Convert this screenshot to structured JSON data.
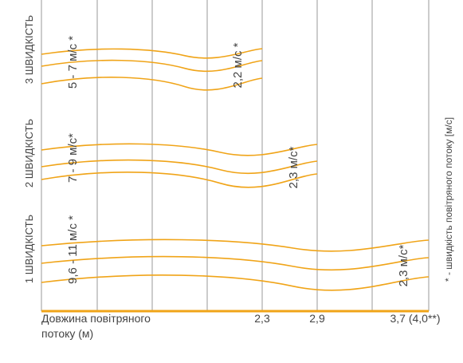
{
  "colors": {
    "airflow_line": "#F0A418",
    "baseline": "#F0A418",
    "grid": "#9A9A9A",
    "text": "#444444"
  },
  "chart_data": {
    "type": "line",
    "x_label": "Довжина повітряного потоку (м)",
    "x_label_lines": [
      "Довжина повітряного",
      "потоку (м)"
    ],
    "x_tick_labels": [
      "2,3",
      "2,9",
      "3,7 (4,0**)"
    ],
    "grid": "vertical",
    "series": [
      {
        "name": "3 ШВИДКІСТЬ",
        "airflow_speed": "5 - 7 м/с *",
        "end_speed": "2,2 м/с *",
        "throw_length": "2,3"
      },
      {
        "name": "2 ШВИДКІСТЬ",
        "airflow_speed": "7 - 9 м/с*",
        "end_speed": "2,3 м/с*",
        "throw_length": "2,9"
      },
      {
        "name": "1 ШВИДКІСТЬ",
        "airflow_speed": "9,6 - 11 м/с *",
        "end_speed": "2,3 м/с*",
        "throw_length": "3,7 (4,0**)"
      }
    ],
    "footnote": "* - швидкість повітряного потоку [м/с]"
  }
}
